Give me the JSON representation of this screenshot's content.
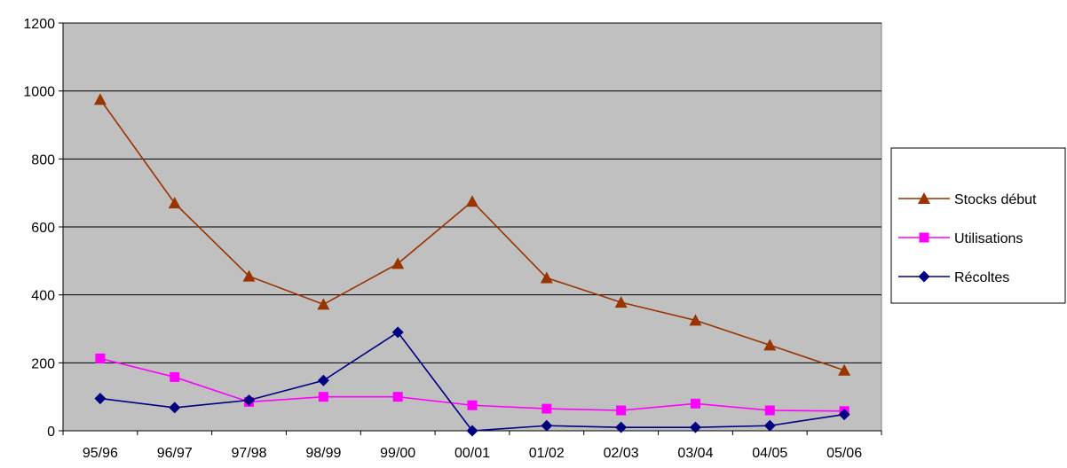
{
  "chart_data": {
    "type": "line",
    "categories": [
      "95/96",
      "96/97",
      "97/98",
      "98/99",
      "99/00",
      "00/01",
      "01/02",
      "02/03",
      "03/04",
      "04/05",
      "05/06"
    ],
    "series": [
      {
        "name": "Stocks début",
        "color": "#993300",
        "marker": "triangle",
        "values": [
          975,
          670,
          455,
          372,
          492,
          675,
          450,
          378,
          325,
          252,
          178
        ]
      },
      {
        "name": "Utilisations",
        "color": "#ff00ff",
        "marker": "square",
        "values": [
          213,
          158,
          85,
          100,
          100,
          75,
          65,
          60,
          80,
          60,
          58
        ]
      },
      {
        "name": "Récoltes",
        "color": "#000080",
        "marker": "diamond",
        "values": [
          95,
          68,
          90,
          148,
          290,
          0,
          15,
          10,
          10,
          15,
          48
        ]
      }
    ],
    "ylim": [
      0,
      1200
    ],
    "yticks": [
      0,
      200,
      400,
      600,
      800,
      1000,
      1200
    ],
    "grid": true,
    "plot_background": "#c0c0c0",
    "legend_position": "right"
  }
}
